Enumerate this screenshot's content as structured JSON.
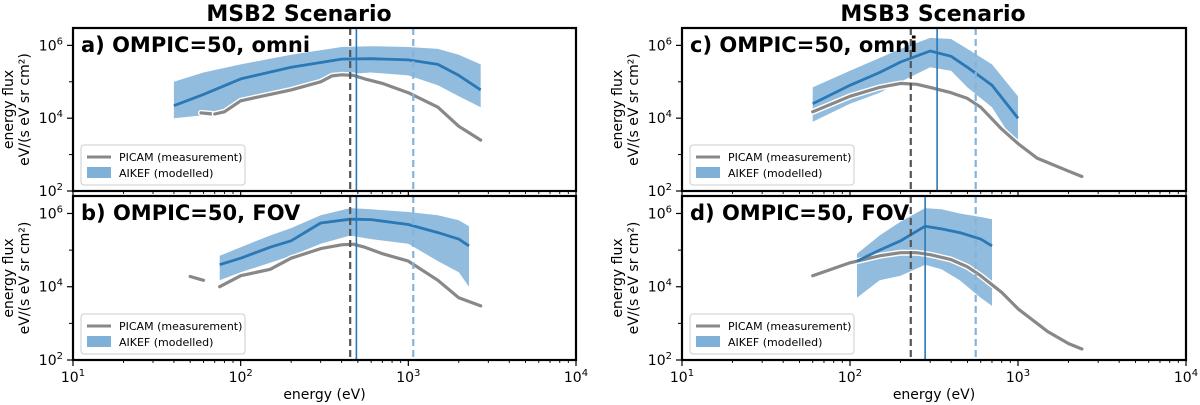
{
  "titles": [
    "MSB2 Scenario",
    "MSB3 Scenario"
  ],
  "colors": {
    "model_line": "#2a78b5",
    "model_band": "#7fb0d8",
    "measurement": "#888888",
    "dash_gray": "#555555",
    "dash_blue": "#84b4db",
    "solid_blue": "#2a78b5"
  },
  "chart_data": [
    {
      "id": "a",
      "type": "line",
      "xscale": "log",
      "yscale": "log",
      "xlim": [
        10,
        10000
      ],
      "ylim": [
        100,
        3000000
      ],
      "label": "a) OMPIC=50, omni",
      "ylabel": [
        "energy flux",
        "eV/(s eV sr cm²)"
      ],
      "xlabel": "",
      "legend": {
        "position": "lower-left",
        "entries": [
          "PICAM (measurement)",
          "AIKEF (modelled)"
        ]
      },
      "measurement": [
        [
          70,
          13000
        ],
        [
          80,
          15000
        ],
        [
          100,
          30000
        ],
        [
          150,
          45000
        ],
        [
          200,
          60000
        ],
        [
          300,
          100000
        ],
        [
          350,
          145000
        ],
        [
          400,
          155000
        ],
        [
          470,
          150000
        ],
        [
          550,
          120000
        ],
        [
          700,
          90000
        ],
        [
          1000,
          50000
        ],
        [
          1500,
          20000
        ],
        [
          2000,
          6000
        ],
        [
          2700,
          2500
        ]
      ],
      "measurement_pre": [
        [
          58,
          14000
        ],
        [
          68,
          13000
        ]
      ],
      "model": [
        [
          40,
          22000
        ],
        [
          60,
          45000
        ],
        [
          100,
          120000
        ],
        [
          200,
          250000
        ],
        [
          400,
          420000
        ],
        [
          600,
          430000
        ],
        [
          1000,
          400000
        ],
        [
          1500,
          300000
        ],
        [
          2000,
          150000
        ],
        [
          2700,
          60000
        ]
      ],
      "model_upper": [
        [
          40,
          100000
        ],
        [
          60,
          180000
        ],
        [
          100,
          300000
        ],
        [
          200,
          550000
        ],
        [
          400,
          900000
        ],
        [
          600,
          950000
        ],
        [
          1000,
          900000
        ],
        [
          1500,
          800000
        ],
        [
          2000,
          550000
        ],
        [
          2700,
          300000
        ]
      ],
      "model_lower": [
        [
          40,
          10000
        ],
        [
          60,
          12000
        ],
        [
          100,
          25000
        ],
        [
          200,
          60000
        ],
        [
          400,
          160000
        ],
        [
          600,
          180000
        ],
        [
          1000,
          150000
        ],
        [
          1500,
          80000
        ],
        [
          2000,
          40000
        ],
        [
          2700,
          20000
        ]
      ],
      "vlines": [
        {
          "x": 450,
          "style": "dashed",
          "color": "gray"
        },
        {
          "x": 490,
          "style": "solid",
          "color": "blue"
        },
        {
          "x": 1070,
          "style": "dashed",
          "color": "lightblue"
        }
      ]
    },
    {
      "id": "b",
      "type": "line",
      "xscale": "log",
      "yscale": "log",
      "xlim": [
        10,
        10000
      ],
      "ylim": [
        100,
        3000000
      ],
      "label": "b) OMPIC=50, FOV",
      "ylabel": [
        "energy flux",
        "eV/(s eV sr cm²)"
      ],
      "xlabel": "energy (eV)",
      "legend": {
        "position": "lower-left",
        "entries": [
          "PICAM (measurement)",
          "AIKEF (modelled)"
        ]
      },
      "measurement": [
        [
          75,
          10000
        ],
        [
          100,
          20000
        ],
        [
          150,
          30000
        ],
        [
          200,
          60000
        ],
        [
          300,
          110000
        ],
        [
          400,
          140000
        ],
        [
          470,
          145000
        ],
        [
          550,
          120000
        ],
        [
          700,
          80000
        ],
        [
          1000,
          50000
        ],
        [
          1500,
          15000
        ],
        [
          2000,
          5000
        ],
        [
          2700,
          3000
        ]
      ],
      "measurement_pre": [
        [
          50,
          19000
        ],
        [
          60,
          15000
        ]
      ],
      "model": [
        [
          75,
          40000
        ],
        [
          100,
          60000
        ],
        [
          150,
          120000
        ],
        [
          200,
          180000
        ],
        [
          300,
          550000
        ],
        [
          450,
          700000
        ],
        [
          600,
          680000
        ],
        [
          1000,
          500000
        ],
        [
          1500,
          300000
        ],
        [
          2000,
          200000
        ],
        [
          2300,
          130000
        ]
      ],
      "model_upper": [
        [
          75,
          70000
        ],
        [
          100,
          120000
        ],
        [
          150,
          250000
        ],
        [
          200,
          400000
        ],
        [
          300,
          900000
        ],
        [
          450,
          1400000
        ],
        [
          600,
          1300000
        ],
        [
          1000,
          1100000
        ],
        [
          1500,
          900000
        ],
        [
          2000,
          650000
        ],
        [
          2300,
          450000
        ]
      ],
      "model_lower": [
        [
          75,
          15000
        ],
        [
          100,
          25000
        ],
        [
          150,
          45000
        ],
        [
          200,
          70000
        ],
        [
          300,
          150000
        ],
        [
          450,
          250000
        ],
        [
          600,
          200000
        ],
        [
          1000,
          150000
        ],
        [
          1500,
          50000
        ],
        [
          2000,
          25000
        ],
        [
          2300,
          10000
        ]
      ],
      "vlines": [
        {
          "x": 450,
          "style": "dashed",
          "color": "gray"
        },
        {
          "x": 490,
          "style": "solid",
          "color": "blue"
        },
        {
          "x": 1070,
          "style": "dashed",
          "color": "lightblue"
        }
      ]
    },
    {
      "id": "c",
      "type": "line",
      "xscale": "log",
      "yscale": "log",
      "xlim": [
        10,
        10000
      ],
      "ylim": [
        100,
        3000000
      ],
      "label": "c) OMPIC=50, omni",
      "ylabel": [
        "energy flux",
        "eV/(s eV sr cm²)"
      ],
      "xlabel": "",
      "legend": {
        "position": "lower-left",
        "entries": [
          "PICAM (measurement)",
          "AIKEF (modelled)"
        ]
      },
      "measurement": [
        [
          60,
          15000
        ],
        [
          100,
          40000
        ],
        [
          150,
          70000
        ],
        [
          200,
          90000
        ],
        [
          250,
          85000
        ],
        [
          300,
          70000
        ],
        [
          400,
          50000
        ],
        [
          500,
          35000
        ],
        [
          600,
          20000
        ],
        [
          800,
          5000
        ],
        [
          1000,
          2000
        ],
        [
          1300,
          800
        ],
        [
          2000,
          350
        ],
        [
          2400,
          250
        ]
      ],
      "measurement_pre": [],
      "model": [
        [
          60,
          25000
        ],
        [
          100,
          80000
        ],
        [
          150,
          180000
        ],
        [
          200,
          350000
        ],
        [
          300,
          700000
        ],
        [
          400,
          500000
        ],
        [
          500,
          250000
        ],
        [
          700,
          80000
        ],
        [
          1000,
          10000
        ]
      ],
      "model_upper": [
        [
          60,
          70000
        ],
        [
          100,
          200000
        ],
        [
          150,
          450000
        ],
        [
          200,
          800000
        ],
        [
          300,
          1600000
        ],
        [
          400,
          1500000
        ],
        [
          500,
          800000
        ],
        [
          700,
          300000
        ],
        [
          1000,
          40000
        ]
      ],
      "model_lower": [
        [
          60,
          8000
        ],
        [
          100,
          25000
        ],
        [
          150,
          50000
        ],
        [
          200,
          100000
        ],
        [
          300,
          250000
        ],
        [
          400,
          200000
        ],
        [
          500,
          70000
        ],
        [
          700,
          20000
        ],
        [
          1000,
          1500
        ]
      ],
      "vlines": [
        {
          "x": 230,
          "style": "dashed",
          "color": "gray"
        },
        {
          "x": 330,
          "style": "solid",
          "color": "blue"
        },
        {
          "x": 560,
          "style": "dashed",
          "color": "lightblue"
        }
      ]
    },
    {
      "id": "d",
      "type": "line",
      "xscale": "log",
      "yscale": "log",
      "xlim": [
        10,
        10000
      ],
      "ylim": [
        100,
        3000000
      ],
      "label": "d) OMPIC=50, FOV",
      "ylabel": [
        "energy flux",
        "eV/(s eV sr cm²)"
      ],
      "xlabel": "energy (eV)",
      "legend": {
        "position": "lower-left",
        "entries": [
          "PICAM (measurement)",
          "AIKEF (modelled)"
        ]
      },
      "measurement": [
        [
          60,
          20000
        ],
        [
          100,
          45000
        ],
        [
          150,
          70000
        ],
        [
          200,
          85000
        ],
        [
          250,
          85000
        ],
        [
          300,
          75000
        ],
        [
          400,
          55000
        ],
        [
          500,
          35000
        ],
        [
          600,
          20000
        ],
        [
          800,
          7000
        ],
        [
          1000,
          2500
        ],
        [
          1500,
          600
        ],
        [
          2000,
          280
        ],
        [
          2400,
          200
        ]
      ],
      "measurement_pre": [],
      "model": [
        [
          110,
          50000
        ],
        [
          150,
          100000
        ],
        [
          200,
          180000
        ],
        [
          280,
          450000
        ],
        [
          350,
          380000
        ],
        [
          450,
          300000
        ],
        [
          600,
          200000
        ],
        [
          700,
          130000
        ]
      ],
      "model_upper": [
        [
          110,
          80000
        ],
        [
          150,
          250000
        ],
        [
          200,
          600000
        ],
        [
          280,
          1400000
        ],
        [
          350,
          1300000
        ],
        [
          450,
          1000000
        ],
        [
          600,
          800000
        ],
        [
          700,
          700000
        ]
      ],
      "model_lower": [
        [
          110,
          5000
        ],
        [
          150,
          15000
        ],
        [
          200,
          20000
        ],
        [
          280,
          40000
        ],
        [
          350,
          30000
        ],
        [
          450,
          15000
        ],
        [
          600,
          5000
        ],
        [
          700,
          3000
        ]
      ],
      "vlines": [
        {
          "x": 230,
          "style": "dashed",
          "color": "gray"
        },
        {
          "x": 280,
          "style": "solid",
          "color": "blue"
        },
        {
          "x": 560,
          "style": "dashed",
          "color": "lightblue"
        }
      ]
    }
  ],
  "x_ticks": [
    {
      "base": "10",
      "exp": "1"
    },
    {
      "base": "10",
      "exp": "2"
    },
    {
      "base": "10",
      "exp": "3"
    },
    {
      "base": "10",
      "exp": "4"
    }
  ],
  "y_ticks": [
    {
      "base": "10",
      "exp": "2"
    },
    {
      "base": "10",
      "exp": "4"
    },
    {
      "base": "10",
      "exp": "6"
    }
  ]
}
